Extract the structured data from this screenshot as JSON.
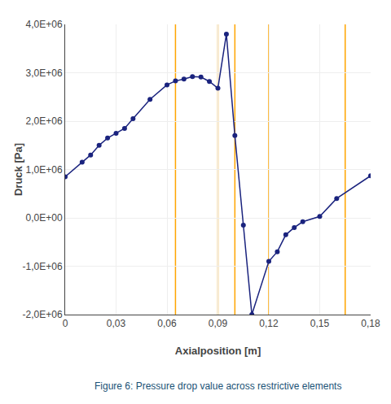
{
  "chart_data": {
    "type": "line",
    "x": [
      0.0,
      0.01,
      0.015,
      0.02,
      0.025,
      0.03,
      0.035,
      0.04,
      0.05,
      0.06,
      0.065,
      0.07,
      0.075,
      0.08,
      0.085,
      0.09,
      0.095,
      0.1,
      0.105,
      0.11,
      0.12,
      0.125,
      0.13,
      0.135,
      0.14,
      0.15,
      0.16,
      0.18
    ],
    "values": [
      850000,
      1150000,
      1300000,
      1500000,
      1650000,
      1750000,
      1850000,
      2050000,
      2450000,
      2750000,
      2830000,
      2870000,
      2920000,
      2910000,
      2820000,
      2680000,
      3800000,
      1700000,
      -150000,
      -2000000,
      -900000,
      -700000,
      -350000,
      -200000,
      -80000,
      30000,
      400000,
      870000
    ],
    "color": "#1a237e",
    "marker": "circle",
    "line_style": "solid",
    "vlines": {
      "x": [
        0.065,
        0.09,
        0.1,
        0.12,
        0.165
      ],
      "color": "#FFA500"
    },
    "xlim": [
      0,
      0.18
    ],
    "ylim": [
      -2000000,
      4000000
    ],
    "xticks": [
      0,
      {
        "value": 0.03,
        "label": "0,03"
      },
      {
        "value": 0.06,
        "label": "0,06"
      },
      {
        "value": 0.09,
        "label": "0,09"
      },
      {
        "value": 0.12,
        "label": "0,12"
      },
      {
        "value": 0.15,
        "label": "0,15"
      },
      {
        "value": 0.18,
        "label": "0,18"
      }
    ],
    "yticks": [
      {
        "value": -2000000,
        "label": "-2,0E+06"
      },
      {
        "value": -1000000,
        "label": "-1,0E+06"
      },
      {
        "value": 0,
        "label": "0,0E+00"
      },
      {
        "value": 1000000,
        "label": "1,0E+06"
      },
      {
        "value": 2000000,
        "label": "2,0E+06"
      },
      {
        "value": 3000000,
        "label": "3,0E+06"
      },
      {
        "value": 4000000,
        "label": "4,0E+06"
      }
    ],
    "xlabel": "Axialposition [m]",
    "ylabel": "Druck [Pa]",
    "annotations": [
      {
        "text": "Figure 6: Pressure drop value across restrictive elements",
        "color": "#1a5276"
      }
    ],
    "grid": true
  }
}
